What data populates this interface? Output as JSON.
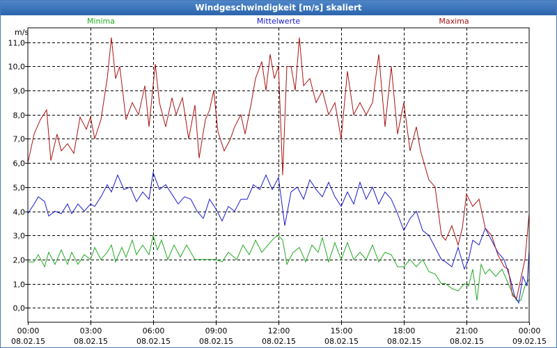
{
  "window": {
    "title": "Windgeschwindigkeit [m/s] skaliert"
  },
  "colors": {
    "min": "#22aa22",
    "mean": "#1a1acc",
    "max": "#aa1111",
    "grid": "#000000"
  },
  "chart_data": {
    "type": "line",
    "title": "Windgeschwindigkeit [m/s] skaliert",
    "ylabel": "m/s",
    "ylim": [
      -0.6,
      11.6
    ],
    "xlim": [
      0,
      24
    ],
    "y_ticks": [
      "0,0",
      "1,0",
      "2,0",
      "3,0",
      "4,0",
      "5,0",
      "6,0",
      "7,0",
      "8,0",
      "9,0",
      "10,0",
      "11,0"
    ],
    "y_tick_values": [
      0,
      1,
      2,
      3,
      4,
      5,
      6,
      7,
      8,
      9,
      10,
      11
    ],
    "x_ticks": [
      {
        "time": "00:00",
        "date": "08.02.15"
      },
      {
        "time": "03:00",
        "date": "08.02.15"
      },
      {
        "time": "06:00",
        "date": "08.02.15"
      },
      {
        "time": "09:00",
        "date": "08.02.15"
      },
      {
        "time": "12:00",
        "date": "08.02.15"
      },
      {
        "time": "15:00",
        "date": "08.02.15"
      },
      {
        "time": "18:00",
        "date": "08.02.15"
      },
      {
        "time": "21:00",
        "date": "08.02.15"
      },
      {
        "time": "00:00",
        "date": "09.02.15"
      }
    ],
    "x_tick_hours": [
      0,
      3,
      6,
      9,
      12,
      15,
      18,
      21,
      24
    ],
    "grid": true,
    "series": [
      {
        "name": "Minima",
        "color": "#22aa22",
        "points": [
          [
            0,
            1.9
          ],
          [
            0.3,
            1.9
          ],
          [
            0.5,
            2.2
          ],
          [
            0.8,
            1.7
          ],
          [
            1.0,
            2.3
          ],
          [
            1.3,
            1.8
          ],
          [
            1.6,
            2.4
          ],
          [
            1.9,
            1.8
          ],
          [
            2.1,
            2.3
          ],
          [
            2.4,
            1.8
          ],
          [
            2.7,
            2.2
          ],
          [
            3.0,
            2.0
          ],
          [
            3.2,
            2.5
          ],
          [
            3.5,
            2.0
          ],
          [
            3.8,
            2.3
          ],
          [
            4.0,
            2.6
          ],
          [
            4.2,
            1.9
          ],
          [
            4.5,
            2.5
          ],
          [
            4.7,
            2.1
          ],
          [
            5.0,
            2.8
          ],
          [
            5.2,
            2.2
          ],
          [
            5.5,
            2.6
          ],
          [
            5.8,
            2.2
          ],
          [
            6.0,
            3.0
          ],
          [
            6.2,
            2.4
          ],
          [
            6.4,
            2.8
          ],
          [
            6.7,
            2.0
          ],
          [
            7.0,
            2.6
          ],
          [
            7.3,
            2.1
          ],
          [
            7.6,
            2.6
          ],
          [
            8.0,
            2.0
          ],
          [
            8.5,
            2.0
          ],
          [
            9.0,
            2.0
          ],
          [
            9.3,
            1.9
          ],
          [
            9.6,
            2.3
          ],
          [
            10.0,
            2.0
          ],
          [
            10.3,
            2.6
          ],
          [
            10.6,
            2.2
          ],
          [
            10.9,
            2.8
          ],
          [
            11.2,
            2.3
          ],
          [
            11.5,
            2.6
          ],
          [
            11.8,
            2.9
          ],
          [
            12.0,
            3.0
          ],
          [
            12.2,
            2.8
          ],
          [
            12.4,
            1.8
          ],
          [
            12.7,
            2.3
          ],
          [
            13.0,
            2.5
          ],
          [
            13.3,
            1.9
          ],
          [
            13.6,
            2.6
          ],
          [
            13.9,
            2.3
          ],
          [
            14.1,
            2.9
          ],
          [
            14.4,
            1.9
          ],
          [
            14.7,
            2.7
          ],
          [
            15.0,
            2.0
          ],
          [
            15.3,
            2.7
          ],
          [
            15.6,
            2.0
          ],
          [
            15.9,
            2.3
          ],
          [
            16.2,
            2.0
          ],
          [
            16.5,
            2.6
          ],
          [
            16.8,
            1.9
          ],
          [
            17.1,
            2.3
          ],
          [
            17.4,
            2.2
          ],
          [
            17.7,
            1.7
          ],
          [
            18.0,
            1.7
          ],
          [
            18.3,
            2.0
          ],
          [
            18.6,
            1.7
          ],
          [
            18.9,
            2.0
          ],
          [
            19.2,
            1.5
          ],
          [
            19.5,
            1.4
          ],
          [
            19.8,
            1.0
          ],
          [
            20.0,
            1.0
          ],
          [
            20.3,
            0.8
          ],
          [
            20.6,
            0.7
          ],
          [
            20.9,
            1.0
          ],
          [
            21.1,
            0.9
          ],
          [
            21.3,
            1.6
          ],
          [
            21.5,
            0.3
          ],
          [
            21.7,
            1.8
          ],
          [
            21.9,
            1.4
          ],
          [
            22.1,
            1.6
          ],
          [
            22.4,
            1.3
          ],
          [
            22.7,
            1.6
          ],
          [
            23.0,
            1.0
          ],
          [
            23.2,
            0.6
          ],
          [
            23.4,
            0.3
          ],
          [
            23.6,
            0.3
          ],
          [
            23.8,
            0.9
          ],
          [
            24.0,
            1.2
          ]
        ]
      },
      {
        "name": "Mittelwerte",
        "color": "#1a1acc",
        "points": [
          [
            0,
            3.9
          ],
          [
            0.3,
            4.3
          ],
          [
            0.5,
            4.6
          ],
          [
            0.8,
            4.4
          ],
          [
            1.0,
            3.8
          ],
          [
            1.3,
            4.0
          ],
          [
            1.6,
            3.9
          ],
          [
            1.9,
            4.3
          ],
          [
            2.1,
            3.9
          ],
          [
            2.4,
            4.3
          ],
          [
            2.7,
            4.0
          ],
          [
            3.0,
            4.3
          ],
          [
            3.2,
            4.2
          ],
          [
            3.5,
            4.6
          ],
          [
            3.8,
            5.1
          ],
          [
            4.0,
            4.8
          ],
          [
            4.3,
            5.5
          ],
          [
            4.6,
            4.9
          ],
          [
            4.9,
            5.0
          ],
          [
            5.2,
            4.4
          ],
          [
            5.5,
            4.8
          ],
          [
            5.8,
            4.5
          ],
          [
            6.0,
            5.6
          ],
          [
            6.3,
            4.9
          ],
          [
            6.6,
            5.1
          ],
          [
            6.9,
            4.7
          ],
          [
            7.2,
            4.3
          ],
          [
            7.5,
            4.6
          ],
          [
            7.8,
            4.5
          ],
          [
            8.1,
            4.0
          ],
          [
            8.4,
            3.7
          ],
          [
            8.7,
            4.5
          ],
          [
            9.0,
            4.1
          ],
          [
            9.3,
            3.6
          ],
          [
            9.6,
            4.2
          ],
          [
            9.9,
            4.0
          ],
          [
            10.2,
            4.5
          ],
          [
            10.5,
            4.5
          ],
          [
            10.8,
            5.1
          ],
          [
            11.1,
            4.9
          ],
          [
            11.4,
            5.5
          ],
          [
            11.7,
            4.9
          ],
          [
            12.0,
            5.4
          ],
          [
            12.3,
            3.4
          ],
          [
            12.6,
            4.8
          ],
          [
            12.9,
            5.0
          ],
          [
            13.2,
            4.5
          ],
          [
            13.5,
            5.3
          ],
          [
            13.8,
            4.9
          ],
          [
            14.1,
            4.6
          ],
          [
            14.4,
            5.2
          ],
          [
            14.7,
            4.6
          ],
          [
            15.0,
            4.2
          ],
          [
            15.3,
            4.8
          ],
          [
            15.6,
            4.3
          ],
          [
            15.9,
            5.2
          ],
          [
            16.2,
            4.5
          ],
          [
            16.5,
            5.0
          ],
          [
            16.8,
            4.3
          ],
          [
            17.1,
            4.8
          ],
          [
            17.4,
            4.5
          ],
          [
            17.7,
            3.9
          ],
          [
            18.0,
            3.2
          ],
          [
            18.3,
            3.7
          ],
          [
            18.6,
            4.0
          ],
          [
            18.9,
            3.2
          ],
          [
            19.2,
            3.0
          ],
          [
            19.5,
            2.5
          ],
          [
            19.8,
            2.0
          ],
          [
            20.0,
            1.9
          ],
          [
            20.3,
            1.7
          ],
          [
            20.6,
            2.5
          ],
          [
            20.9,
            1.6
          ],
          [
            21.1,
            2.0
          ],
          [
            21.3,
            2.8
          ],
          [
            21.6,
            2.6
          ],
          [
            21.9,
            3.3
          ],
          [
            22.2,
            2.8
          ],
          [
            22.5,
            2.3
          ],
          [
            22.8,
            2.0
          ],
          [
            23.1,
            1.2
          ],
          [
            23.3,
            0.5
          ],
          [
            23.5,
            0.2
          ],
          [
            23.7,
            1.3
          ],
          [
            23.9,
            0.9
          ],
          [
            24.0,
            2.4
          ]
        ]
      },
      {
        "name": "Maxima",
        "color": "#aa1111",
        "points": [
          [
            0,
            6.0
          ],
          [
            0.3,
            7.2
          ],
          [
            0.6,
            7.8
          ],
          [
            0.9,
            8.2
          ],
          [
            1.1,
            6.1
          ],
          [
            1.4,
            7.2
          ],
          [
            1.6,
            6.5
          ],
          [
            1.9,
            6.8
          ],
          [
            2.2,
            6.4
          ],
          [
            2.5,
            7.9
          ],
          [
            2.8,
            7.4
          ],
          [
            3.0,
            7.9
          ],
          [
            3.2,
            7.0
          ],
          [
            3.5,
            7.8
          ],
          [
            3.8,
            9.5
          ],
          [
            4.0,
            11.2
          ],
          [
            4.2,
            9.5
          ],
          [
            4.4,
            10.0
          ],
          [
            4.7,
            7.8
          ],
          [
            5.0,
            8.5
          ],
          [
            5.3,
            8.0
          ],
          [
            5.6,
            9.2
          ],
          [
            5.8,
            7.5
          ],
          [
            6.1,
            10.1
          ],
          [
            6.3,
            8.5
          ],
          [
            6.6,
            7.5
          ],
          [
            6.9,
            8.7
          ],
          [
            7.1,
            8.0
          ],
          [
            7.4,
            8.7
          ],
          [
            7.7,
            7.0
          ],
          [
            8.0,
            8.4
          ],
          [
            8.2,
            6.2
          ],
          [
            8.5,
            7.8
          ],
          [
            8.7,
            8.2
          ],
          [
            8.9,
            9.0
          ],
          [
            9.1,
            7.3
          ],
          [
            9.4,
            6.5
          ],
          [
            9.7,
            7.0
          ],
          [
            9.9,
            7.5
          ],
          [
            10.2,
            8.0
          ],
          [
            10.4,
            7.2
          ],
          [
            10.7,
            8.5
          ],
          [
            10.9,
            9.5
          ],
          [
            11.2,
            10.2
          ],
          [
            11.4,
            9.0
          ],
          [
            11.6,
            10.5
          ],
          [
            11.8,
            9.5
          ],
          [
            12.0,
            10.0
          ],
          [
            12.2,
            5.5
          ],
          [
            12.4,
            10.0
          ],
          [
            12.6,
            10.0
          ],
          [
            12.8,
            9.0
          ],
          [
            13.0,
            11.2
          ],
          [
            13.2,
            9.2
          ],
          [
            13.5,
            9.5
          ],
          [
            13.8,
            8.5
          ],
          [
            14.1,
            9.0
          ],
          [
            14.4,
            8.0
          ],
          [
            14.7,
            8.5
          ],
          [
            15.0,
            7.0
          ],
          [
            15.3,
            9.8
          ],
          [
            15.6,
            8.0
          ],
          [
            15.9,
            8.5
          ],
          [
            16.2,
            8.0
          ],
          [
            16.5,
            8.5
          ],
          [
            16.8,
            10.5
          ],
          [
            17.1,
            7.5
          ],
          [
            17.4,
            10.0
          ],
          [
            17.7,
            7.2
          ],
          [
            18.0,
            8.5
          ],
          [
            18.3,
            6.5
          ],
          [
            18.6,
            7.5
          ],
          [
            18.8,
            6.5
          ],
          [
            19.2,
            5.3
          ],
          [
            19.5,
            5.0
          ],
          [
            19.8,
            3.0
          ],
          [
            20.0,
            2.8
          ],
          [
            20.3,
            3.4
          ],
          [
            20.6,
            2.6
          ],
          [
            20.8,
            3.3
          ],
          [
            21.0,
            4.7
          ],
          [
            21.3,
            4.2
          ],
          [
            21.6,
            4.5
          ],
          [
            21.9,
            3.3
          ],
          [
            22.2,
            3.0
          ],
          [
            22.5,
            2.2
          ],
          [
            22.8,
            1.7
          ],
          [
            23.0,
            1.6
          ],
          [
            23.2,
            0.5
          ],
          [
            23.4,
            0.4
          ],
          [
            23.6,
            1.2
          ],
          [
            23.8,
            2.0
          ],
          [
            24.0,
            3.9
          ]
        ]
      }
    ]
  }
}
